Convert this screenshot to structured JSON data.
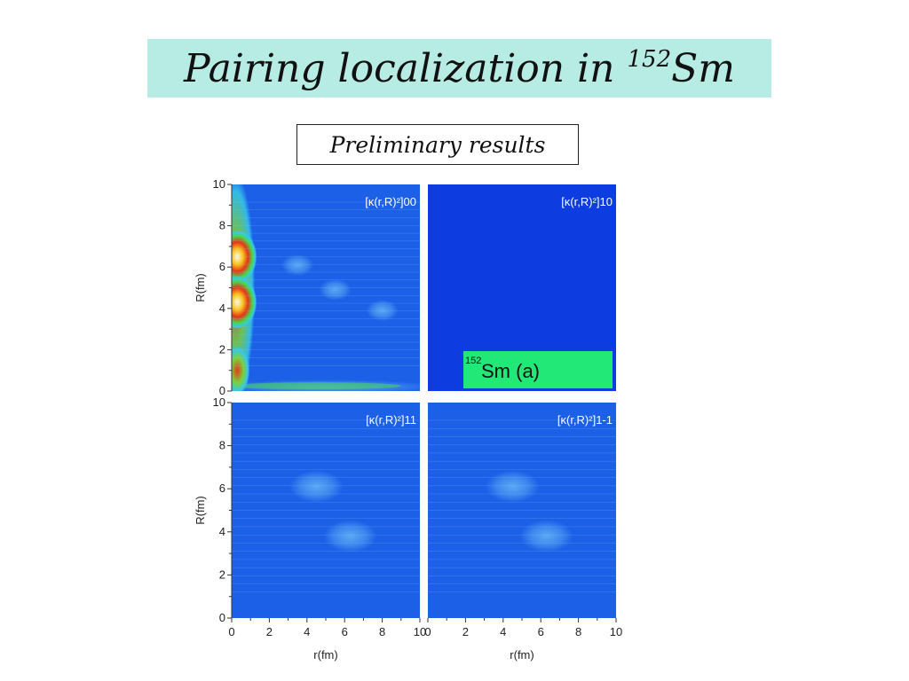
{
  "title": {
    "main": "Pairing localization in ",
    "sup": "152",
    "element": "Sm"
  },
  "subtitle": "Preliminary results",
  "colors": {
    "title_bg": "#b7ece4",
    "plot_bg": "#1c60e8",
    "blank_bg": "#0d3de0",
    "label_bg": "#22e878"
  },
  "chart_data": [
    {
      "type": "heatmap",
      "panel": "top-left",
      "label": "[κ(r,R)²]00",
      "xlabel": "",
      "ylabel": "R(fm)",
      "xlim": [
        0,
        10
      ],
      "ylim": [
        0,
        10
      ],
      "yticks": [
        "0",
        "2",
        "4",
        "6",
        "8",
        "10"
      ],
      "hotspots": [
        {
          "r": 0.3,
          "R": 6.5,
          "level": "max"
        },
        {
          "r": 0.3,
          "R": 4.3,
          "level": "max"
        },
        {
          "r": 0.3,
          "R": 1.0,
          "level": "high"
        },
        {
          "r": 3.5,
          "R": 6.1,
          "level": "low"
        },
        {
          "r": 5.5,
          "R": 4.9,
          "level": "low"
        },
        {
          "r": 8.0,
          "R": 3.9,
          "level": "low"
        }
      ]
    },
    {
      "type": "heatmap",
      "panel": "top-right",
      "label": "[κ(r,R)²]10",
      "xlim": [
        0,
        10
      ],
      "ylim": [
        0,
        10
      ],
      "inset": {
        "sup": "152",
        "text": "Sm (a)"
      }
    },
    {
      "type": "heatmap",
      "panel": "bottom-left",
      "label": "[κ(r,R)²]11",
      "xlabel": "r(fm)",
      "ylabel": "R(fm)",
      "xlim": [
        0,
        10
      ],
      "ylim": [
        0,
        10
      ],
      "xticks": [
        "0",
        "2",
        "4",
        "6",
        "8",
        "10"
      ],
      "yticks": [
        "0",
        "2",
        "4",
        "6",
        "8",
        "10"
      ],
      "hotspots": [
        {
          "r": 4.5,
          "R": 6.1,
          "level": "low"
        },
        {
          "r": 6.3,
          "R": 3.8,
          "level": "low"
        }
      ]
    },
    {
      "type": "heatmap",
      "panel": "bottom-right",
      "label": "[κ(r,R)²]1-1",
      "xlabel": "r(fm)",
      "xlim": [
        0,
        10
      ],
      "ylim": [
        0,
        10
      ],
      "xticks": [
        "0",
        "2",
        "4",
        "6",
        "8",
        "10"
      ],
      "hotspots": [
        {
          "r": 4.5,
          "R": 6.1,
          "level": "low"
        },
        {
          "r": 6.3,
          "R": 3.8,
          "level": "low"
        }
      ]
    }
  ]
}
